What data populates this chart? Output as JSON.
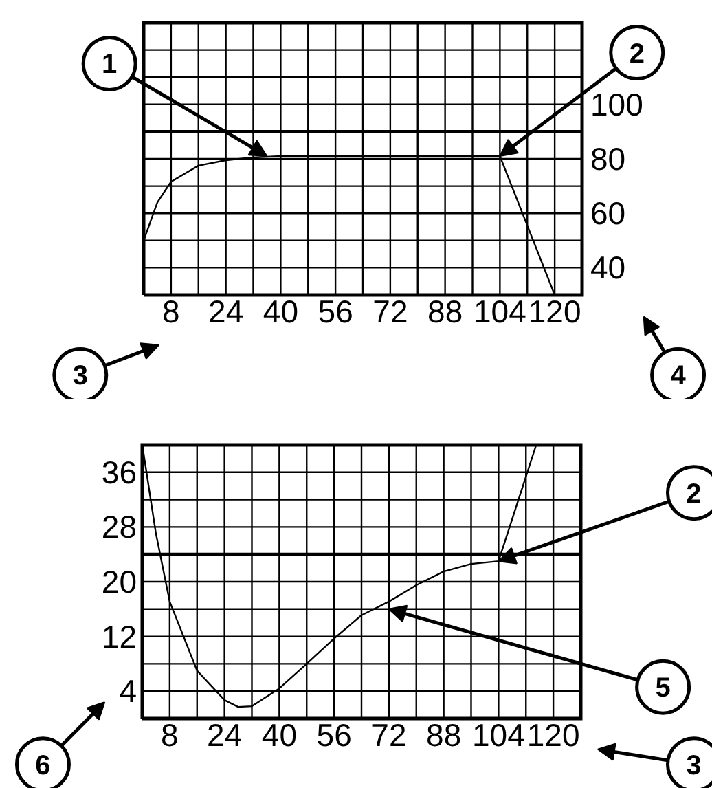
{
  "chart_data": [
    {
      "type": "line",
      "x": [
        0,
        2,
        4,
        8,
        16,
        24,
        32,
        40,
        56,
        72,
        88,
        104,
        120
      ],
      "series": [
        {
          "color": "#000000",
          "values": [
            50,
            57,
            64,
            71.6,
            77.5,
            79.5,
            80.5,
            81,
            81,
            81,
            81,
            81,
            30
          ]
        }
      ],
      "xlim": [
        0,
        128
      ],
      "ylim": [
        30,
        130
      ],
      "xticks": [
        {
          "value": 0,
          "label": null
        },
        8,
        {
          "value": 16,
          "label": null
        },
        24,
        {
          "value": 32,
          "label": null
        },
        40,
        {
          "value": 48,
          "label": null
        },
        56,
        {
          "value": 64,
          "label": null
        },
        72,
        {
          "value": 80,
          "label": null
        },
        88,
        {
          "value": 96,
          "label": null
        },
        104,
        {
          "value": 112,
          "label": null
        },
        120,
        {
          "value": 128,
          "label": null
        }
      ],
      "yticks": [
        {
          "value": 30,
          "label": null
        },
        40,
        {
          "value": 50,
          "label": null
        },
        60,
        {
          "value": 70,
          "label": null
        },
        80,
        {
          "value": 90,
          "label": null
        },
        100,
        {
          "value": 110,
          "label": null
        },
        {
          "value": 120,
          "label": null
        },
        {
          "value": 130,
          "label": null
        }
      ],
      "grid": true,
      "ref_lines": [
        {
          "axis": "y",
          "value": 90,
          "color": "#000000"
        }
      ],
      "annotations": [
        {
          "text": "1",
          "x": 36,
          "y": 81
        },
        {
          "text": "2",
          "x": 104,
          "y": 81
        },
        "3",
        "4"
      ]
    },
    {
      "type": "line",
      "x": [
        0,
        4,
        8,
        16,
        24,
        28,
        32,
        40,
        48,
        56,
        64,
        72,
        80,
        88,
        96,
        104,
        115
      ],
      "series": [
        {
          "color": "#000000",
          "values": [
            40,
            27,
            17.1,
            7,
            2.7,
            1.7,
            1.8,
            4.4,
            8,
            11.7,
            15.1,
            17.1,
            19.5,
            21.5,
            22.6,
            23,
            40
          ]
        }
      ],
      "xlim": [
        0,
        128
      ],
      "ylim": [
        0,
        40
      ],
      "xticks": [
        {
          "value": 0,
          "label": null
        },
        8,
        {
          "value": 16,
          "label": null
        },
        24,
        {
          "value": 32,
          "label": null
        },
        40,
        {
          "value": 48,
          "label": null
        },
        56,
        {
          "value": 64,
          "label": null
        },
        72,
        {
          "value": 80,
          "label": null
        },
        88,
        {
          "value": 96,
          "label": null
        },
        104,
        {
          "value": 112,
          "label": null
        },
        120,
        {
          "value": 128,
          "label": null
        }
      ],
      "yticks": [
        {
          "value": 0,
          "label": null
        },
        4,
        {
          "value": 8,
          "label": null
        },
        12,
        {
          "value": 16,
          "label": null
        },
        20,
        {
          "value": 24,
          "label": null
        },
        28,
        {
          "value": 32,
          "label": null
        },
        36,
        {
          "value": 40,
          "label": null
        }
      ],
      "grid": true,
      "ref_lines": [
        {
          "axis": "y",
          "value": 24,
          "color": "#000000"
        }
      ],
      "annotations": [
        {
          "text": "2",
          "x": 104,
          "y": 23
        },
        {
          "text": "5",
          "x": 72,
          "y": 16
        },
        "6",
        "3"
      ]
    }
  ]
}
